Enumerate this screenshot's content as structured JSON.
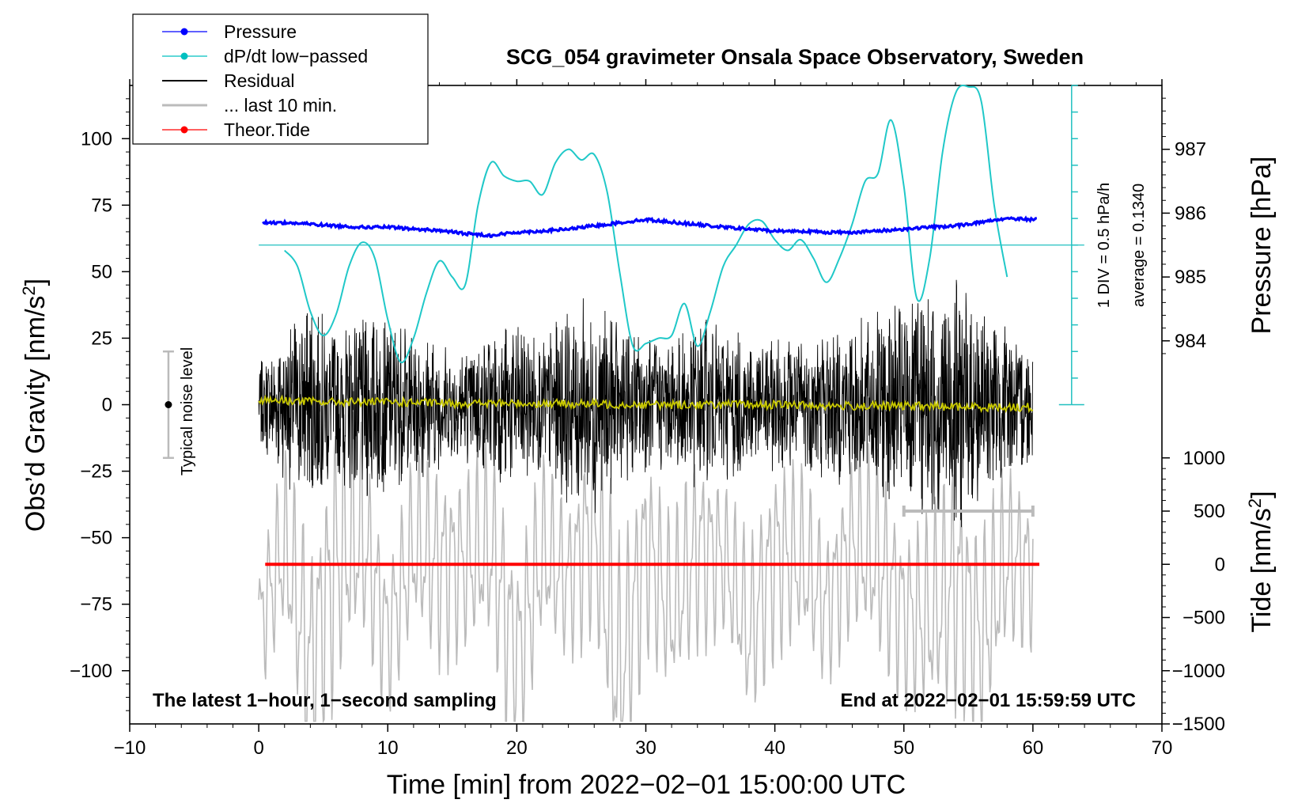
{
  "chart_data": {
    "type": "line",
    "title": "SCG_054 gravimeter Onsala Space Observatory, Sweden",
    "xlabel": "Time [min] from 2022−02−01 15:00:00 UTC",
    "ylabel": "Obs’d Gravity [nm/s",
    "ylabel_sup": "2",
    "ylabel_close": "]",
    "y2label": "Pressure [hPa]",
    "y3label": "Tide [nm/s",
    "y3label_sup": "2",
    "y3label_close": "]",
    "xlim": [
      -10,
      70
    ],
    "ylim": [
      -120,
      120
    ],
    "x_ticks": [
      -10,
      0,
      10,
      20,
      30,
      40,
      50,
      60,
      70
    ],
    "x_tick_labels": [
      "−10",
      "0",
      "10",
      "20",
      "30",
      "40",
      "50",
      "60",
      "70"
    ],
    "y_ticks": [
      -100,
      -75,
      -50,
      -25,
      0,
      25,
      50,
      75,
      100
    ],
    "y_tick_labels": [
      "−100",
      "−75",
      "−50",
      "−25",
      "0",
      "25",
      "50",
      "75",
      "100"
    ],
    "pressure_axis": {
      "ticks": [
        984,
        985,
        986,
        987
      ],
      "tick_labels": [
        "984",
        "985",
        "986",
        "987"
      ],
      "ref_hpa": 987,
      "ref_gravity": 96,
      "gravity_per_hpa": 24
    },
    "tide_axis": {
      "ticks": [
        -1500,
        -1000,
        -500,
        0,
        500,
        1000
      ],
      "tick_labels": [
        "−1500",
        "−1000",
        "−500",
        "0",
        "500",
        "1000"
      ],
      "offset_gravity": -60,
      "gravity_per_unit": 0.04
    },
    "dpdt_scale": {
      "label": "1 DIV = 0.5 hPa/h",
      "average_label": "average = 0.1340",
      "x": 63,
      "y_bottom": 0,
      "y_top": 120,
      "divisions": 12,
      "baseline_y": 60
    },
    "legend": {
      "position": "top-left",
      "entries": [
        {
          "label": "Pressure",
          "color": "#0000ff",
          "marker": true
        },
        {
          "label": "dP/dt low−passed",
          "color": "#00c0c0",
          "marker": true
        },
        {
          "label": "Residual",
          "color": "#000000",
          "marker": false
        },
        {
          "label": "... last 10 min.",
          "color": "#bbbbbb",
          "marker": false
        },
        {
          "label": "Theor.Tide",
          "color": "#ff0000",
          "marker": true
        }
      ]
    },
    "noise_bar": {
      "label": "Typical noise level",
      "x": -7,
      "center": 0,
      "half_range": 20
    },
    "last10_bar": {
      "x_start": 50,
      "x_end": 60,
      "y": -40
    },
    "annotations": {
      "bottom_left": "The latest 1−hour, 1−second sampling",
      "bottom_right": "End at 2022−02−01 15:59:59 UTC"
    },
    "series": [
      {
        "name": "Pressure",
        "color": "#0000ff",
        "units": "hPa",
        "x": [
          0,
          2,
          4,
          6,
          8,
          10,
          12,
          14,
          16,
          18,
          20,
          22,
          24,
          26,
          28,
          30,
          32,
          34,
          36,
          38,
          40,
          42,
          44,
          46,
          48,
          50,
          52,
          54,
          56,
          58,
          60
        ],
        "values": [
          985.85,
          985.85,
          985.83,
          985.8,
          985.78,
          985.78,
          985.75,
          985.73,
          985.68,
          985.65,
          985.7,
          985.72,
          985.75,
          985.8,
          985.85,
          985.9,
          985.86,
          985.82,
          985.78,
          985.75,
          985.72,
          985.72,
          985.7,
          985.7,
          985.72,
          985.75,
          985.78,
          985.8,
          985.86,
          985.92,
          985.9
        ]
      },
      {
        "name": "dP/dt low−passed",
        "color": "#00c0c0",
        "units": "nm/s² plot scale",
        "x": [
          2,
          3,
          4,
          5,
          6,
          7,
          8,
          9,
          10,
          11,
          12,
          13,
          14,
          15,
          16,
          17,
          18,
          19,
          20,
          21,
          22,
          23,
          24,
          25,
          26,
          27,
          28,
          29,
          30,
          31,
          32,
          33,
          34,
          35,
          36,
          37,
          38,
          39,
          40,
          41,
          42,
          43,
          44,
          45,
          46,
          47,
          48,
          49,
          50,
          51,
          52,
          53,
          54,
          55,
          56,
          57,
          58
        ],
        "values": [
          58,
          52,
          35,
          26,
          34,
          52,
          61,
          55,
          32,
          16,
          25,
          42,
          54,
          48,
          45,
          75,
          91,
          86,
          84,
          84,
          79,
          91,
          96,
          92,
          94,
          80,
          49,
          22,
          23,
          25,
          26,
          38,
          22,
          35,
          52,
          60,
          68,
          69,
          62,
          58,
          62,
          55,
          46,
          55,
          68,
          84,
          87,
          107,
          82,
          40,
          55,
          95,
          117,
          122,
          114,
          75,
          48
        ]
      },
      {
        "name": "Residual",
        "color": "#000000",
        "units": "nm/s²",
        "x": [
          0,
          2,
          4,
          6,
          8,
          10,
          12,
          14,
          16,
          18,
          20,
          22,
          24,
          26,
          28,
          30,
          32,
          34,
          36,
          38,
          40,
          42,
          44,
          46,
          48,
          50,
          52,
          54,
          56,
          58,
          60
        ],
        "values": [
          4,
          14,
          -6,
          22,
          28,
          30,
          -25,
          -7,
          6,
          -20,
          -17,
          8,
          16,
          -33,
          13,
          4,
          -9,
          -15,
          1,
          11,
          4,
          -13,
          -11,
          1,
          18,
          -30,
          35,
          -42,
          21,
          -14,
          -10
        ],
        "envelope": [
          15,
          30,
          42,
          28,
          38,
          35,
          30,
          25,
          22,
          28,
          33,
          25,
          38,
          42,
          30,
          28,
          25,
          35,
          30,
          28,
          25,
          28,
          30,
          32,
          36,
          40,
          45,
          50,
          38,
          30,
          22
        ]
      },
      {
        "name": "... last 10 min.",
        "color": "#bbbbbb",
        "units": "nm/s²",
        "x": [
          0,
          2,
          4,
          6,
          8,
          10,
          12,
          14,
          16,
          18,
          20,
          22,
          24,
          26,
          28,
          30,
          32,
          34,
          36,
          38,
          40,
          42,
          44,
          46,
          48,
          50,
          52,
          54,
          56,
          58,
          60
        ],
        "values": [
          -83,
          -53,
          -98,
          -58,
          -49,
          -87,
          -53,
          -60,
          -59,
          -54,
          -97,
          -55,
          -66,
          -43,
          -107,
          -52,
          -79,
          -53,
          -57,
          -87,
          -56,
          -58,
          -76,
          -51,
          -59,
          -78,
          -81,
          -66,
          -89,
          -58,
          -62
        ],
        "envelope": [
          25,
          35,
          50,
          55,
          40,
          30,
          35,
          40,
          35,
          40,
          45,
          35,
          30,
          45,
          55,
          40,
          35,
          40,
          30,
          35,
          40,
          35,
          30,
          35,
          40,
          35,
          40,
          50,
          45,
          35,
          30
        ]
      },
      {
        "name": "Yellow trace",
        "color": "#c8c800",
        "units": "nm/s²",
        "x": [
          0,
          5,
          10,
          15,
          20,
          25,
          30,
          35,
          40,
          45,
          50,
          55,
          60
        ],
        "values": [
          2,
          1,
          1,
          0.5,
          0.5,
          0.3,
          0,
          0,
          0,
          -0.5,
          -0.5,
          -0.8,
          -1
        ]
      },
      {
        "name": "Theor.Tide",
        "color": "#ff0000",
        "units": "nm/s²",
        "x": [
          0.5,
          60.5
        ],
        "values": [
          0,
          0
        ]
      }
    ]
  }
}
